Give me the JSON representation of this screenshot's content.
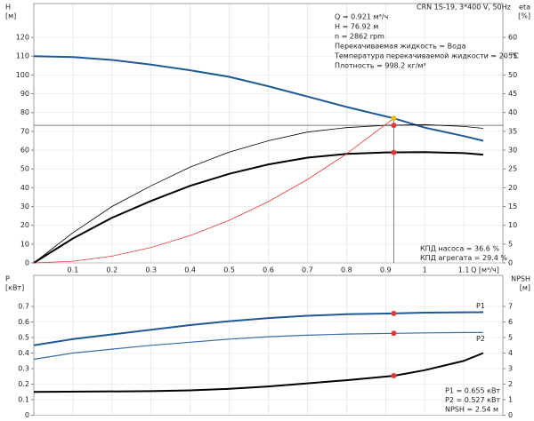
{
  "chart_data": [
    {
      "type": "line",
      "title": "CRN 1S-19, 3*400 V, 50Hz",
      "ylabel": "H",
      "ylabel_unit": "[м]",
      "y2label": "eta",
      "y2label_unit": "[%]",
      "xlabel": "Q [м³/ч]",
      "xlim": [
        0,
        1.2
      ],
      "xticks": [
        0.1,
        0.2,
        0.3,
        0.4,
        0.5,
        0.6,
        0.7,
        0.8,
        0.9,
        1.0,
        1.1
      ],
      "ylim": [
        0,
        138
      ],
      "yticks": [
        0,
        10,
        20,
        30,
        40,
        50,
        60,
        70,
        80,
        90,
        100,
        110,
        120
      ],
      "y2lim": [
        0,
        69
      ],
      "y2ticks": [
        0,
        5,
        10,
        15,
        20,
        25,
        30,
        35,
        40,
        45,
        50,
        55,
        60
      ],
      "grid": true,
      "series": [
        {
          "color": "#1f5a96",
          "width": 2,
          "x": [
            0,
            0.1,
            0.2,
            0.3,
            0.4,
            0.5,
            0.6,
            0.7,
            0.8,
            0.9,
            0.921,
            1.0,
            1.1,
            1.15
          ],
          "values": [
            110,
            109.5,
            108,
            105.5,
            102.5,
            99,
            94,
            88.5,
            83,
            78,
            76.92,
            72,
            67.5,
            65
          ]
        },
        {
          "color": "#000000",
          "width": 0.8,
          "axis": "y2",
          "x": [
            0,
            0.1,
            0.2,
            0.3,
            0.4,
            0.5,
            0.6,
            0.7,
            0.8,
            0.9,
            1.0,
            1.1,
            1.15
          ],
          "values": [
            0,
            8,
            15,
            20.5,
            25.5,
            29.5,
            32.5,
            34.8,
            36,
            36.6,
            36.8,
            36.3,
            35.8
          ]
        },
        {
          "color": "#000000",
          "width": 2,
          "axis": "y2",
          "x": [
            0,
            0.1,
            0.2,
            0.3,
            0.4,
            0.5,
            0.6,
            0.7,
            0.8,
            0.9,
            1.0,
            1.1,
            1.15
          ],
          "values": [
            0,
            6.5,
            12,
            16.5,
            20.5,
            23.7,
            26.2,
            28,
            29,
            29.4,
            29.5,
            29.2,
            28.8
          ]
        },
        {
          "color": "#e53935",
          "width": 0.8,
          "x": [
            0,
            0.1,
            0.2,
            0.3,
            0.4,
            0.5,
            0.6,
            0.7,
            0.8,
            0.921
          ],
          "values": [
            0,
            0.9,
            3.6,
            8.2,
            14.5,
            22.7,
            32.6,
            44.4,
            58,
            76.92
          ]
        }
      ],
      "points": [
        {
          "x": 0.921,
          "y": 76.92,
          "color": "#f5b800"
        },
        {
          "x": 0.921,
          "y": 36.6,
          "axis": "y2",
          "color": "#e53935"
        },
        {
          "x": 0.921,
          "y": 29.4,
          "axis": "y2",
          "color": "#e53935"
        }
      ],
      "info": [
        "Q = 0.921 м³/ч",
        "H = 76.92 м",
        "n = 2862 rpm",
        "Перекачиваемая жидкость = Вода",
        "Температура перекачиваемой жидкости = 20 °C",
        "Плотность = 998.2 кг/м³"
      ],
      "notes": [
        "КПД насоса = 36.6 %",
        "КПД агрегата = 29.4 %"
      ]
    },
    {
      "type": "line",
      "ylabel": "P",
      "ylabel_unit": "[кВт]",
      "y2label": "NPSH",
      "y2label_unit": "[м]",
      "xlim": [
        0,
        1.2
      ],
      "ylim": [
        0,
        0.9
      ],
      "yticks": [
        0,
        0.1,
        0.2,
        0.3,
        0.4,
        0.5,
        0.6,
        0.7
      ],
      "y2lim": [
        0,
        9
      ],
      "y2ticks": [
        0,
        1,
        2,
        3,
        4,
        5,
        6,
        7
      ],
      "grid": true,
      "series": [
        {
          "name": "P1",
          "color": "#1f5a96",
          "width": 2,
          "x": [
            0,
            0.1,
            0.2,
            0.3,
            0.4,
            0.5,
            0.6,
            0.7,
            0.8,
            0.921,
            1.0,
            1.1,
            1.15
          ],
          "values": [
            0.45,
            0.49,
            0.52,
            0.55,
            0.58,
            0.605,
            0.625,
            0.64,
            0.65,
            0.655,
            0.66,
            0.662,
            0.663
          ]
        },
        {
          "name": "P2",
          "color": "#3a6ea5",
          "width": 1.2,
          "x": [
            0,
            0.1,
            0.2,
            0.3,
            0.4,
            0.5,
            0.6,
            0.7,
            0.8,
            0.921,
            1.0,
            1.1,
            1.15
          ],
          "values": [
            0.36,
            0.4,
            0.425,
            0.45,
            0.47,
            0.49,
            0.505,
            0.515,
            0.522,
            0.527,
            0.53,
            0.532,
            0.532
          ]
        },
        {
          "color": "#000000",
          "width": 2,
          "axis": "y2",
          "x": [
            0,
            0.3,
            0.4,
            0.5,
            0.6,
            0.7,
            0.8,
            0.921,
            1.0,
            1.1,
            1.15
          ],
          "values": [
            1.5,
            1.55,
            1.6,
            1.7,
            1.85,
            2.05,
            2.25,
            2.54,
            2.9,
            3.5,
            4.0
          ]
        }
      ],
      "points": [
        {
          "x": 0.921,
          "y": 0.655,
          "color": "#e53935"
        },
        {
          "x": 0.921,
          "y": 0.527,
          "color": "#e53935"
        },
        {
          "x": 0.921,
          "y": 2.54,
          "axis": "y2",
          "color": "#e53935"
        }
      ],
      "notes": [
        "P1 = 0.655 кВт",
        "P2 = 0.527 кВт",
        "NPSH = 2.54 м"
      ]
    }
  ]
}
